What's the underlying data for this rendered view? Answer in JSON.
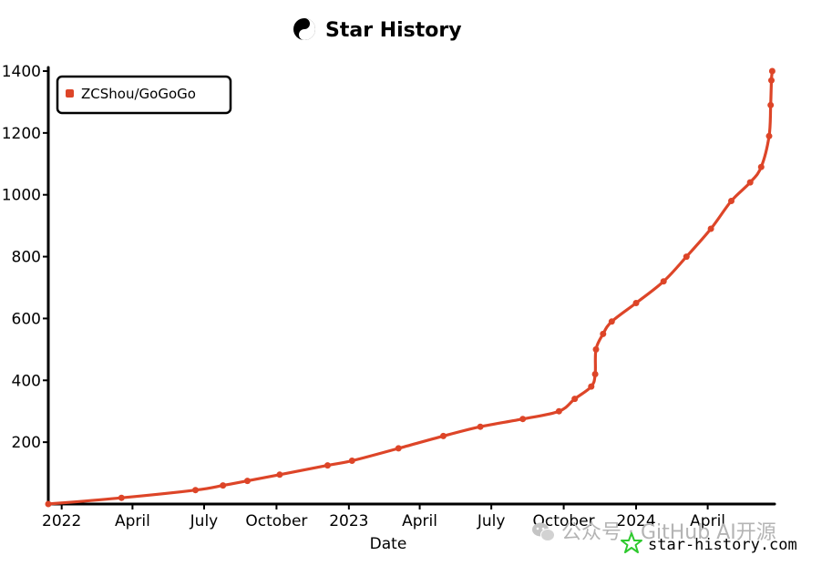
{
  "chart_data": {
    "type": "line",
    "title": "Star History",
    "xlabel": "Date",
    "ylabel": "",
    "x_range": [
      "2021-12-15",
      "2024-06-25"
    ],
    "ylim": [
      0,
      1400
    ],
    "y_ticks": [
      200,
      400,
      600,
      800,
      1000,
      1200,
      1400
    ],
    "x_ticks": [
      {
        "date": "2022-01-01",
        "label": "2022"
      },
      {
        "date": "2022-04-01",
        "label": "April"
      },
      {
        "date": "2022-07-01",
        "label": "July"
      },
      {
        "date": "2022-10-01",
        "label": "October"
      },
      {
        "date": "2023-01-01",
        "label": "2023"
      },
      {
        "date": "2023-04-01",
        "label": "April"
      },
      {
        "date": "2023-07-01",
        "label": "July"
      },
      {
        "date": "2023-10-01",
        "label": "October"
      },
      {
        "date": "2024-01-01",
        "label": "2024"
      },
      {
        "date": "2024-04-01",
        "label": "April"
      }
    ],
    "grid": false,
    "legend_position": "top-left",
    "series": [
      {
        "name": "ZCShou/GoGoGo",
        "color": "#dd4528",
        "points": [
          [
            "2021-12-15",
            0
          ],
          [
            "2022-03-18",
            20
          ],
          [
            "2022-06-20",
            45
          ],
          [
            "2022-07-25",
            60
          ],
          [
            "2022-08-25",
            75
          ],
          [
            "2022-10-05",
            95
          ],
          [
            "2022-12-05",
            125
          ],
          [
            "2023-01-05",
            140
          ],
          [
            "2023-03-05",
            180
          ],
          [
            "2023-05-01",
            220
          ],
          [
            "2023-06-17",
            250
          ],
          [
            "2023-08-10",
            275
          ],
          [
            "2023-09-25",
            300
          ],
          [
            "2023-10-15",
            340
          ],
          [
            "2023-11-05",
            380
          ],
          [
            "2023-11-10",
            420
          ],
          [
            "2023-11-11",
            500
          ],
          [
            "2023-11-20",
            550
          ],
          [
            "2023-12-01",
            590
          ],
          [
            "2024-01-01",
            650
          ],
          [
            "2024-02-05",
            720
          ],
          [
            "2024-03-05",
            800
          ],
          [
            "2024-04-05",
            890
          ],
          [
            "2024-05-01",
            980
          ],
          [
            "2024-05-25",
            1040
          ],
          [
            "2024-06-08",
            1090
          ],
          [
            "2024-06-18",
            1190
          ],
          [
            "2024-06-20",
            1290
          ],
          [
            "2024-06-21",
            1370
          ],
          [
            "2024-06-22",
            1400
          ]
        ]
      }
    ]
  },
  "watermark": {
    "wechat_icon": "wechat-icon",
    "text": "公众号 · GitHub AI开源",
    "text_color": "#b4b4b4"
  },
  "brand": {
    "logo_icon": "star-history-logo-icon",
    "logo_color": "#2ec92e",
    "text": "star-history.com"
  },
  "title_icon": "yin-yang-icon"
}
